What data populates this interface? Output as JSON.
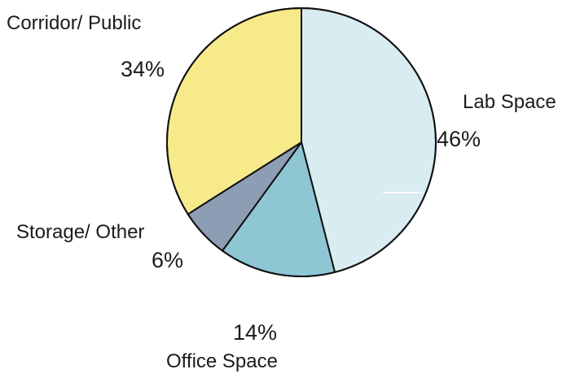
{
  "chart_data": {
    "type": "pie",
    "title": "",
    "slices": [
      {
        "label": "Lab Space",
        "value": 46,
        "value_label": "46%",
        "color": "#d8ecf2"
      },
      {
        "label": "Office Space",
        "value": 14,
        "value_label": "14%",
        "color": "#8ec6d4"
      },
      {
        "label": "Storage/ Other",
        "value": 6,
        "value_label": "6%",
        "color": "#8d9db3"
      },
      {
        "label": "Corridor/ Public",
        "value": 34,
        "value_label": "34%",
        "color": "#f7ea8a"
      }
    ],
    "start_angle_deg": 0,
    "direction": "clockwise",
    "legend": "none"
  }
}
